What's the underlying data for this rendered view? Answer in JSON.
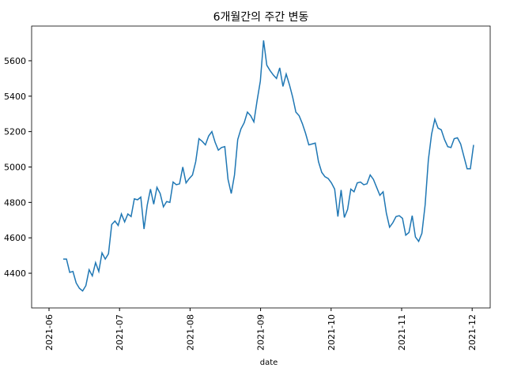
{
  "chart_data": {
    "type": "line",
    "title": "6개월간의 주간 변동",
    "x_label": "date",
    "xticks": [
      "2021-06",
      "2021-07",
      "2021-08",
      "2021-09",
      "2021-10",
      "2021-11",
      "2021-12"
    ],
    "ylim": [
      4204,
      5796
    ],
    "yticks": [
      4400,
      4600,
      4800,
      5000,
      5200,
      5400,
      5600
    ],
    "color": "#1f77b4",
    "values": [
      4480,
      4480,
      4405,
      4410,
      4345,
      4315,
      4300,
      4330,
      4420,
      4385,
      4460,
      4410,
      4515,
      4480,
      4510,
      4675,
      4695,
      4670,
      4735,
      4690,
      4735,
      4720,
      4820,
      4815,
      4830,
      4650,
      4785,
      4875,
      4790,
      4885,
      4850,
      4775,
      4805,
      4800,
      4915,
      4900,
      4905,
      5000,
      4910,
      4935,
      4955,
      5030,
      5160,
      5145,
      5125,
      5175,
      5200,
      5140,
      5095,
      5110,
      5115,
      4930,
      4850,
      4955,
      5155,
      5215,
      5250,
      5310,
      5290,
      5255,
      5375,
      5485,
      5715,
      5575,
      5545,
      5520,
      5500,
      5560,
      5455,
      5525,
      5465,
      5395,
      5310,
      5290,
      5245,
      5190,
      5125,
      5130,
      5135,
      5030,
      4970,
      4945,
      4935,
      4910,
      4875,
      4720,
      4870,
      4715,
      4760,
      4875,
      4860,
      4910,
      4915,
      4900,
      4905,
      4955,
      4930,
      4885,
      4840,
      4860,
      4740,
      4660,
      4685,
      4720,
      4725,
      4710,
      4615,
      4630,
      4725,
      4605,
      4580,
      4625,
      4785,
      5040,
      5185,
      5270,
      5220,
      5210,
      5155,
      5115,
      5110,
      5160,
      5165,
      5130,
      5060,
      4990,
      4990,
      5125
    ]
  }
}
